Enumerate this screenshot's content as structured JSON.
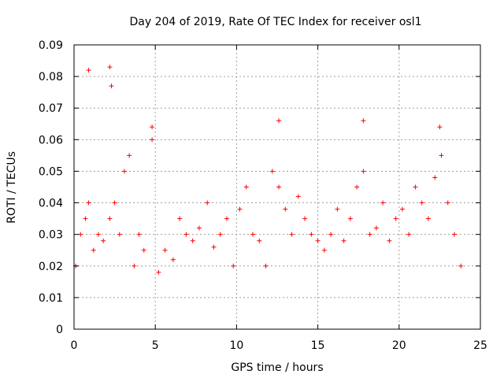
{
  "chart_data": {
    "type": "scatter",
    "title": "Day 204 of 2019, Rate Of TEC Index for receiver osl1",
    "xlabel": "GPS time / hours",
    "ylabel": "ROTI / TECUs",
    "xlim": [
      0,
      25
    ],
    "ylim": [
      0,
      0.09
    ],
    "xticks": [
      0,
      5,
      10,
      15,
      20,
      25
    ],
    "xtick_labels": [
      "0",
      "5",
      "10",
      "15",
      "20",
      "25"
    ],
    "yticks": [
      0,
      0.01,
      0.02,
      0.03,
      0.04,
      0.05,
      0.06,
      0.07,
      0.08,
      0.09
    ],
    "ytick_labels": [
      "0",
      "0.01",
      "0.02",
      "0.03",
      "0.04",
      "0.05",
      "0.06",
      "0.07",
      "0.08",
      "0.09"
    ],
    "grid": true,
    "marker": "plus",
    "color": "#ff0000",
    "series": [
      {
        "x": [
          0.1,
          0.4,
          0.7,
          0.9,
          1.2,
          1.5,
          1.8,
          2.2,
          2.5,
          2.8,
          3.1,
          3.4,
          3.7,
          4.0,
          4.3,
          4.8,
          5.2,
          5.6,
          6.1,
          6.5,
          6.9,
          7.3,
          7.7,
          8.2,
          8.6,
          9.0,
          9.4,
          9.8,
          10.2,
          10.6,
          11.0,
          11.4,
          11.8,
          12.2,
          12.6,
          13.0,
          13.4,
          13.8,
          14.2,
          14.6,
          15.0,
          15.4,
          15.8,
          16.2,
          16.6,
          17.0,
          17.4,
          17.8,
          18.2,
          18.6,
          19.0,
          19.4,
          19.8,
          20.2,
          20.6,
          21.0,
          21.4,
          21.8,
          22.2,
          22.6,
          23.0,
          23.4,
          23.8,
          0.9,
          2.2,
          2.3,
          4.8,
          12.6,
          17.8,
          22.5
        ],
        "y": [
          0.02,
          0.03,
          0.035,
          0.04,
          0.025,
          0.03,
          0.028,
          0.035,
          0.04,
          0.03,
          0.05,
          0.055,
          0.02,
          0.03,
          0.025,
          0.06,
          0.018,
          0.025,
          0.022,
          0.035,
          0.03,
          0.028,
          0.032,
          0.04,
          0.026,
          0.03,
          0.035,
          0.02,
          0.038,
          0.045,
          0.03,
          0.028,
          0.02,
          0.05,
          0.045,
          0.038,
          0.03,
          0.042,
          0.035,
          0.03,
          0.028,
          0.025,
          0.03,
          0.038,
          0.028,
          0.035,
          0.045,
          0.05,
          0.03,
          0.032,
          0.04,
          0.028,
          0.035,
          0.038,
          0.03,
          0.045,
          0.04,
          0.035,
          0.048,
          0.055,
          0.04,
          0.03,
          0.02,
          0.082,
          0.083,
          0.077,
          0.064,
          0.066,
          0.066,
          0.064
        ]
      }
    ]
  }
}
